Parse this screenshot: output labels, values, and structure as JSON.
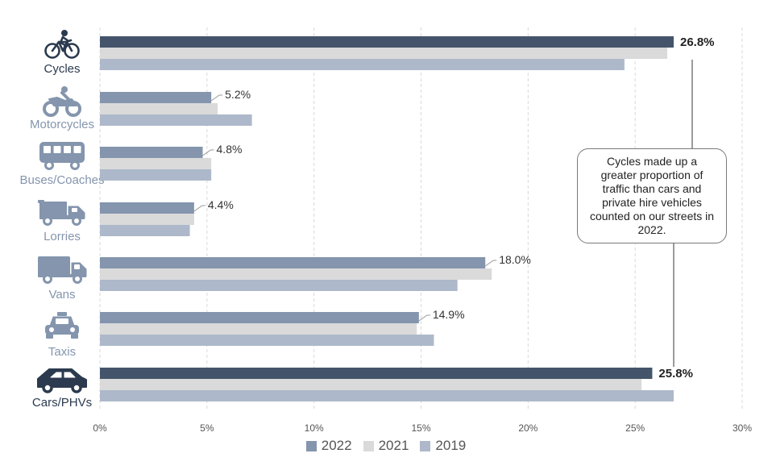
{
  "chart_data": {
    "type": "bar",
    "orientation": "horizontal",
    "categories": [
      "Cycles",
      "Motorcycles",
      "Buses/Coaches",
      "Lorries",
      "Vans",
      "Taxis",
      "Cars/PHVs"
    ],
    "category_icons": [
      "bicycle-icon",
      "motorcycle-icon",
      "bus-icon",
      "lorry-icon",
      "van-icon",
      "taxi-icon",
      "car-icon"
    ],
    "series": [
      {
        "name": "2022",
        "values": [
          26.8,
          5.2,
          4.8,
          4.4,
          18.0,
          14.9,
          25.8
        ]
      },
      {
        "name": "2021",
        "values": [
          26.5,
          5.5,
          5.2,
          4.4,
          18.3,
          14.8,
          25.3
        ]
      },
      {
        "name": "2019",
        "values": [
          24.5,
          7.1,
          5.2,
          4.2,
          16.7,
          15.6,
          26.8
        ]
      }
    ],
    "data_labels": [
      "26.8%",
      "5.2%",
      "4.8%",
      "4.4%",
      "18.0%",
      "14.9%",
      "25.8%"
    ],
    "highlighted_categories": [
      "Cycles",
      "Cars/PHVs"
    ],
    "x_ticks": [
      "0%",
      "5%",
      "10%",
      "15%",
      "20%",
      "25%",
      "30%"
    ],
    "xlim": [
      0,
      30
    ],
    "grid": "vertical dashed",
    "legend": "bottom",
    "annotation": "Cycles made up a greater proportion of traffic than cars and private hire vehicles counted on our streets in 2022.",
    "colors": {
      "2022": "#8495ad",
      "2022_highlight": "#44546a",
      "2021": "#dadada",
      "2019": "#adb9ca",
      "category_text": "#8495ad",
      "category_text_highlight": "#2b3a4e",
      "grid": "#d9d9d9"
    }
  }
}
